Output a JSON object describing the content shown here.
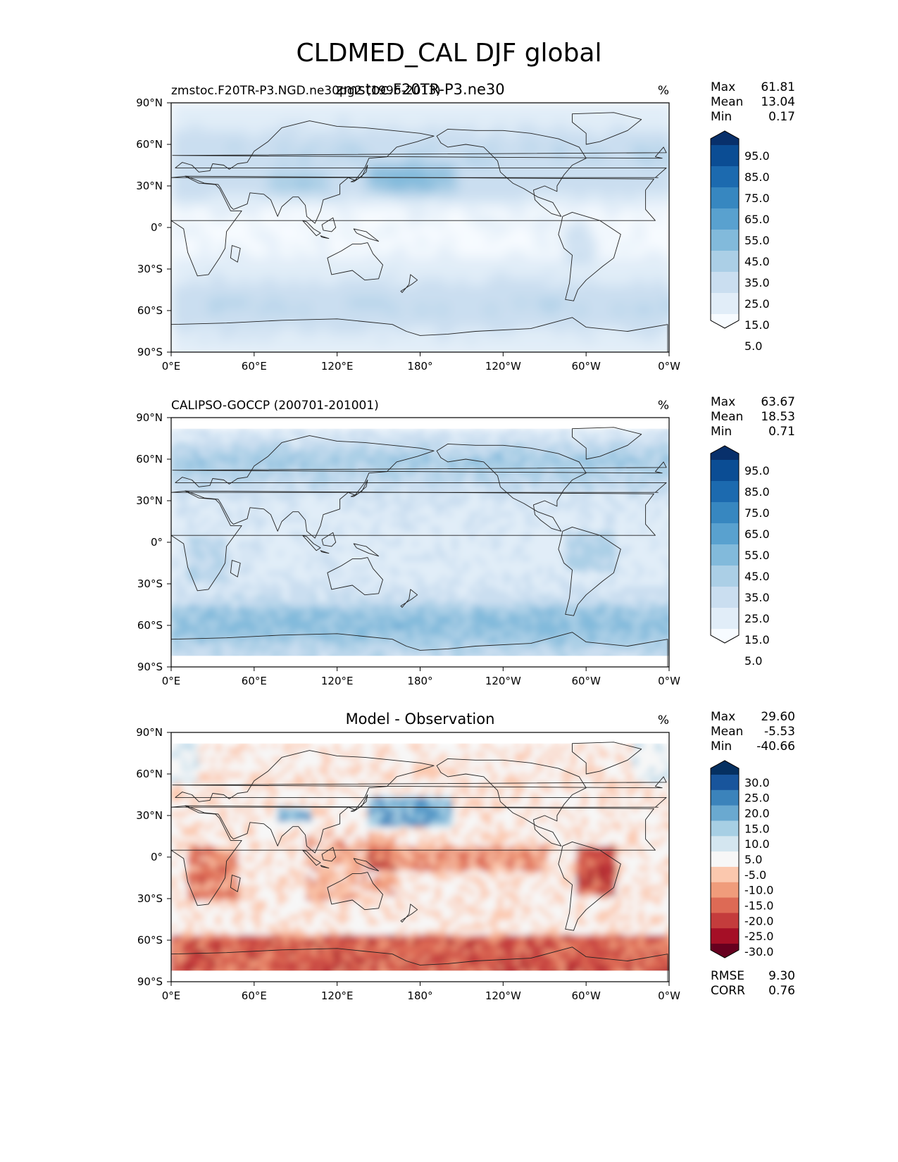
{
  "figure": {
    "title": "CLDMED_CAL DJF global"
  },
  "chart_data": [
    {
      "type": "heatmap",
      "panel": "test",
      "left_title": "zmstoc.F20TR-P3.NGD.ne30pg2 (1996-2013)",
      "center_title": "zmstoc.F20TR-P3.ne30",
      "units": "%",
      "stats": [
        {
          "label": "Max",
          "value": "61.81"
        },
        {
          "label": "Mean",
          "value": "13.04"
        },
        {
          "label": "Min",
          "value": "0.17"
        }
      ],
      "colorbar": {
        "levels": [
          "95.0",
          "85.0",
          "75.0",
          "65.0",
          "55.0",
          "45.0",
          "35.0",
          "25.0",
          "15.0",
          "5.0"
        ],
        "colors": [
          "#f7fbff",
          "#e1edf8",
          "#cadef0",
          "#abcfe6",
          "#82badb",
          "#59a1cf",
          "#3787c0",
          "#1c6aaf",
          "#0b4d94",
          "#08306b"
        ],
        "extend": "both"
      },
      "xticks": [
        "0°E",
        "60°E",
        "120°E",
        "180°",
        "120°W",
        "60°W",
        "0°W"
      ],
      "yticks": [
        "90°N",
        "60°N",
        "30°N",
        "0°",
        "30°S",
        "60°S",
        "90°S"
      ],
      "lon_range": [
        0,
        360
      ],
      "lat_range": [
        -90,
        90
      ],
      "data_lat_range": [
        -90,
        90
      ]
    },
    {
      "type": "heatmap",
      "panel": "reference",
      "left_title": "CALIPSO-GOCCP (200701-201001)",
      "center_title": "",
      "units": "%",
      "stats": [
        {
          "label": "Max",
          "value": "63.67"
        },
        {
          "label": "Mean",
          "value": "18.53"
        },
        {
          "label": "Min",
          "value": "0.71"
        }
      ],
      "colorbar": {
        "levels": [
          "95.0",
          "85.0",
          "75.0",
          "65.0",
          "55.0",
          "45.0",
          "35.0",
          "25.0",
          "15.0",
          "5.0"
        ],
        "colors": [
          "#f7fbff",
          "#e1edf8",
          "#cadef0",
          "#abcfe6",
          "#82badb",
          "#59a1cf",
          "#3787c0",
          "#1c6aaf",
          "#0b4d94",
          "#08306b"
        ],
        "extend": "both"
      },
      "xticks": [
        "0°E",
        "60°E",
        "120°E",
        "180°",
        "120°W",
        "60°W",
        "0°W"
      ],
      "yticks": [
        "90°N",
        "60°N",
        "30°N",
        "0°",
        "30°S",
        "60°S",
        "90°S"
      ],
      "lon_range": [
        0,
        360
      ],
      "lat_range": [
        -90,
        90
      ],
      "data_lat_range": [
        -82,
        82
      ]
    },
    {
      "type": "heatmap",
      "panel": "difference",
      "left_title": "",
      "center_title": "Model - Observation",
      "units": "%",
      "stats": [
        {
          "label": "Max",
          "value": "29.60"
        },
        {
          "label": "Mean",
          "value": "-5.53"
        },
        {
          "label": "Min",
          "value": "-40.66"
        }
      ],
      "extra_stats": [
        {
          "label": "RMSE",
          "value": "9.30"
        },
        {
          "label": "CORR",
          "value": "0.76"
        }
      ],
      "colorbar": {
        "levels": [
          "30.0",
          "25.0",
          "20.0",
          "15.0",
          "10.0",
          "5.0",
          "-5.0",
          "-10.0",
          "-15.0",
          "-20.0",
          "-25.0",
          "-30.0"
        ],
        "colors": [
          "#67001f",
          "#a50f26",
          "#c43c3c",
          "#dd6a55",
          "#f09c7b",
          "#fbc8ae",
          "#f7f7f7",
          "#d4e6f0",
          "#a7cfe4",
          "#6aa9d0",
          "#3b83bb",
          "#18559c",
          "#053061"
        ],
        "extend": "both"
      },
      "xticks": [
        "0°E",
        "60°E",
        "120°E",
        "180°",
        "120°W",
        "60°W",
        "0°W"
      ],
      "yticks": [
        "90°N",
        "60°N",
        "30°N",
        "0°",
        "30°S",
        "60°S",
        "90°S"
      ],
      "lon_range": [
        0,
        360
      ],
      "lat_range": [
        -90,
        90
      ],
      "data_lat_range": [
        -82,
        82
      ]
    }
  ]
}
